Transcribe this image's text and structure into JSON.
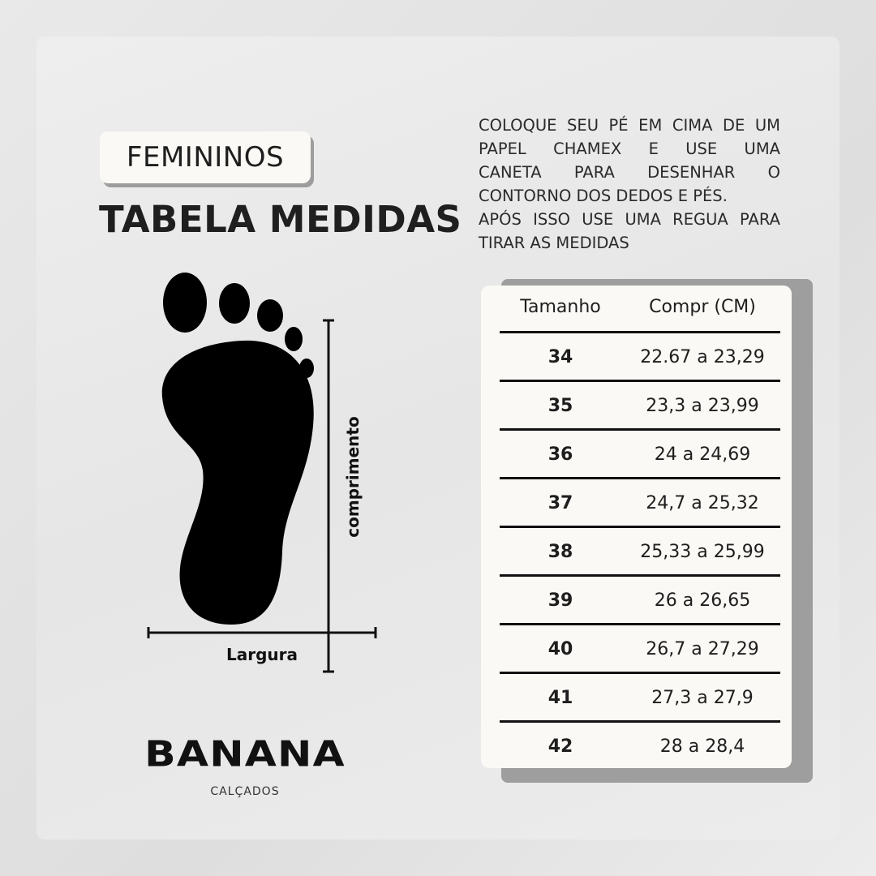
{
  "badge": "FEMININOS",
  "title": "TABELA MEDIDAS",
  "instructions": [
    "COLOQUE SEU PÉ EM CIMA DE UM",
    "PAPEL CHAMEX E USE UMA",
    "CANETA PARA DESENHAR O",
    "CONTORNO DOS DEDOS E PÉS.",
    "APÓS ISSO USE UMA REGUA PARA",
    "TIRAR AS MEDIDAS"
  ],
  "diagram": {
    "length_label": "comprimento",
    "width_label": "Largura"
  },
  "brand": {
    "name": "BANANA",
    "subtitle": "CALÇADOS"
  },
  "table": {
    "headers": [
      "Tamanho",
      "Compr (CM)"
    ],
    "rows": [
      [
        "34",
        "22.67 a 23,29"
      ],
      [
        "35",
        "23,3 a 23,99"
      ],
      [
        "36",
        "24 a 24,69"
      ],
      [
        "37",
        "24,7 a 25,32"
      ],
      [
        "38",
        "25,33 a 25,99"
      ],
      [
        "39",
        "26 a 26,65"
      ],
      [
        "40",
        "26,7 a 27,29"
      ],
      [
        "41",
        "27,3 a 27,9"
      ],
      [
        "42",
        "28 a 28,4"
      ]
    ]
  }
}
